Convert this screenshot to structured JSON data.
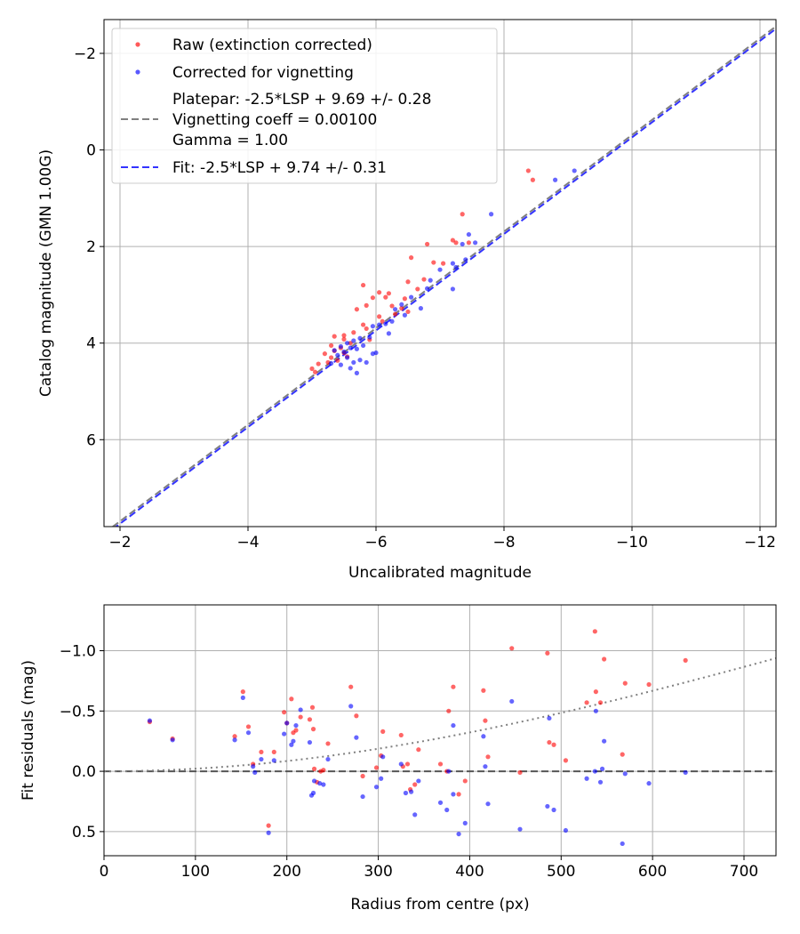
{
  "chart_data": [
    {
      "type": "scatter",
      "title": "",
      "xlabel": "Uncalibrated magnitude",
      "ylabel": "Catalog magnitude (GMN 1.00G)",
      "xlim": [
        -1.75,
        -12.25
      ],
      "ylim": [
        -2.7,
        7.8
      ],
      "y_inverted": true,
      "grid": true,
      "xticks": [
        -2,
        -4,
        -6,
        -8,
        -10,
        -12
      ],
      "yticks": [
        -2,
        0,
        2,
        4,
        6
      ],
      "xtick_labels": [
        "−2",
        "−4",
        "−6",
        "−8",
        "−10",
        "−12"
      ],
      "ytick_labels": [
        "−2",
        "0",
        "2",
        "4",
        "6"
      ],
      "legend": {
        "position": "top-left",
        "entries": [
          {
            "label": "Raw (extinction corrected)",
            "marker": "dot",
            "color": "#ff0000"
          },
          {
            "label": "Corrected for vignetting",
            "marker": "dot",
            "color": "#0000ff"
          },
          {
            "label_lines": [
              "Platepar: -2.5*LSP + 9.69 +/- 0.28",
              "Vignetting coeff = 0.00100",
              "Gamma = 1.00"
            ],
            "marker": "dashed-line",
            "color": "#808080"
          },
          {
            "label": "Fit: -2.5*LSP + 9.74 +/- 0.31",
            "marker": "dashed-line",
            "color": "#0000ff"
          }
        ]
      },
      "lines": [
        {
          "name": "Platepar",
          "x": [
            -1.75,
            -12.25
          ],
          "y": [
            7.94,
            -2.56
          ],
          "color": "#808080",
          "style": "dashed"
        },
        {
          "name": "Fit",
          "x": [
            -1.75,
            -12.25
          ],
          "y": [
            7.99,
            -2.51
          ],
          "color": "#0000ff",
          "style": "dashed"
        }
      ],
      "series": [
        {
          "name": "Raw (extinction corrected)",
          "color": "#ff0000",
          "points": [
            [
              -8.38,
              0.43
            ],
            [
              -8.45,
              0.62
            ],
            [
              -7.35,
              1.33
            ],
            [
              -7.2,
              1.87
            ],
            [
              -7.25,
              1.92
            ],
            [
              -7.45,
              1.92
            ],
            [
              -6.8,
              1.95
            ],
            [
              -6.55,
              2.23
            ],
            [
              -6.9,
              2.33
            ],
            [
              -7.05,
              2.35
            ],
            [
              -6.75,
              2.68
            ],
            [
              -6.5,
              2.73
            ],
            [
              -6.65,
              2.88
            ],
            [
              -5.8,
              2.8
            ],
            [
              -6.05,
              2.95
            ],
            [
              -6.15,
              3.05
            ],
            [
              -6.2,
              2.97
            ],
            [
              -5.95,
              3.06
            ],
            [
              -6.45,
              3.08
            ],
            [
              -5.85,
              3.22
            ],
            [
              -6.25,
              3.23
            ],
            [
              -6.4,
              3.28
            ],
            [
              -6.5,
              3.35
            ],
            [
              -5.7,
              3.3
            ],
            [
              -6.05,
              3.45
            ],
            [
              -6.3,
              3.4
            ],
            [
              -5.8,
              3.62
            ],
            [
              -6.1,
              3.55
            ],
            [
              -5.85,
              3.7
            ],
            [
              -5.65,
              3.78
            ],
            [
              -5.5,
              3.84
            ],
            [
              -5.35,
              3.86
            ],
            [
              -5.5,
              3.92
            ],
            [
              -5.9,
              3.93
            ],
            [
              -5.6,
              4.0
            ],
            [
              -5.3,
              4.05
            ],
            [
              -5.45,
              4.1
            ],
            [
              -5.35,
              4.16
            ],
            [
              -5.5,
              4.2
            ],
            [
              -5.2,
              4.22
            ],
            [
              -5.55,
              4.28
            ],
            [
              -5.3,
              4.3
            ],
            [
              -5.4,
              4.36
            ],
            [
              -5.25,
              4.4
            ],
            [
              -5.1,
              4.43
            ],
            [
              -5.0,
              4.53
            ],
            [
              -5.05,
              4.6
            ]
          ]
        },
        {
          "name": "Corrected for vignetting",
          "color": "#0000ff",
          "points": [
            [
              -9.1,
              0.43
            ],
            [
              -8.8,
              0.62
            ],
            [
              -7.8,
              1.33
            ],
            [
              -7.45,
              1.75
            ],
            [
              -7.55,
              1.92
            ],
            [
              -7.35,
              1.95
            ],
            [
              -7.4,
              2.27
            ],
            [
              -7.2,
              2.35
            ],
            [
              -7.25,
              2.43
            ],
            [
              -7.0,
              2.48
            ],
            [
              -6.85,
              2.7
            ],
            [
              -6.8,
              2.87
            ],
            [
              -7.2,
              2.88
            ],
            [
              -6.55,
              3.05
            ],
            [
              -6.4,
              3.2
            ],
            [
              -6.7,
              3.28
            ],
            [
              -6.3,
              3.3
            ],
            [
              -6.45,
              3.42
            ],
            [
              -6.25,
              3.55
            ],
            [
              -6.15,
              3.6
            ],
            [
              -6.05,
              3.62
            ],
            [
              -5.95,
              3.65
            ],
            [
              -6.2,
              3.8
            ],
            [
              -5.9,
              3.88
            ],
            [
              -5.75,
              3.9
            ],
            [
              -5.65,
              3.95
            ],
            [
              -5.55,
              4.0
            ],
            [
              -5.8,
              4.05
            ],
            [
              -5.45,
              4.07
            ],
            [
              -5.6,
              4.1
            ],
            [
              -5.7,
              4.12
            ],
            [
              -5.35,
              4.15
            ],
            [
              -5.5,
              4.18
            ],
            [
              -6.0,
              4.2
            ],
            [
              -5.95,
              4.22
            ],
            [
              -5.4,
              4.25
            ],
            [
              -5.55,
              4.3
            ],
            [
              -5.75,
              4.35
            ],
            [
              -5.65,
              4.4
            ],
            [
              -5.3,
              4.42
            ],
            [
              -5.45,
              4.45
            ],
            [
              -5.6,
              4.52
            ],
            [
              -5.7,
              4.62
            ],
            [
              -5.85,
              4.4
            ]
          ]
        }
      ]
    },
    {
      "type": "scatter",
      "title": "",
      "xlabel": "Radius from centre (px)",
      "ylabel": "Fit residuals (mag)",
      "xlim": [
        0,
        735
      ],
      "ylim": [
        -1.38,
        0.7
      ],
      "grid": true,
      "xticks": [
        0,
        100,
        200,
        300,
        400,
        500,
        600,
        700
      ],
      "yticks": [
        0.5,
        0.0,
        -0.5,
        -1.0
      ],
      "xtick_labels": [
        "0",
        "100",
        "200",
        "300",
        "400",
        "500",
        "600",
        "700"
      ],
      "ytick_labels": [
        "0.5",
        "0.0",
        "−0.5",
        "−1.0"
      ],
      "reference_line": {
        "y": 0.0,
        "color": "#555555",
        "style": "dashed"
      },
      "vignetting_curve": {
        "description": "-2.5*log10(cos^4(atan(vign_coeff*r)))",
        "vignetting_coeff": 0.001,
        "color": "#808080",
        "style": "dotted"
      },
      "series": [
        {
          "name": "Raw (extinction corrected)",
          "color": "#ff0000",
          "points": [
            [
              50,
              -0.41
            ],
            [
              75,
              -0.27
            ],
            [
              143,
              -0.29
            ],
            [
              152,
              -0.66
            ],
            [
              158,
              -0.37
            ],
            [
              163,
              -0.06
            ],
            [
              172,
              -0.16
            ],
            [
              180,
              0.45
            ],
            [
              186,
              -0.16
            ],
            [
              197,
              -0.49
            ],
            [
              200,
              -0.4
            ],
            [
              205,
              -0.6
            ],
            [
              207,
              -0.32
            ],
            [
              210,
              -0.34
            ],
            [
              215,
              -0.45
            ],
            [
              225,
              -0.43
            ],
            [
              228,
              -0.53
            ],
            [
              229,
              -0.35
            ],
            [
              230,
              -0.02
            ],
            [
              233,
              0.09
            ],
            [
              237,
              0.0
            ],
            [
              240,
              -0.01
            ],
            [
              245,
              -0.23
            ],
            [
              270,
              -0.7
            ],
            [
              276,
              -0.46
            ],
            [
              283,
              0.04
            ],
            [
              298,
              -0.03
            ],
            [
              303,
              -0.13
            ],
            [
              305,
              -0.33
            ],
            [
              325,
              -0.3
            ],
            [
              327,
              -0.04
            ],
            [
              332,
              -0.06
            ],
            [
              335,
              0.15
            ],
            [
              340,
              0.11
            ],
            [
              344,
              -0.18
            ],
            [
              368,
              -0.06
            ],
            [
              375,
              0.0
            ],
            [
              377,
              -0.5
            ],
            [
              382,
              -0.7
            ],
            [
              388,
              0.19
            ],
            [
              395,
              0.08
            ],
            [
              415,
              -0.67
            ],
            [
              417,
              -0.42
            ],
            [
              420,
              -0.12
            ],
            [
              446,
              -1.02
            ],
            [
              455,
              0.01
            ],
            [
              485,
              -0.98
            ],
            [
              487,
              -0.24
            ],
            [
              492,
              -0.22
            ],
            [
              505,
              -0.09
            ],
            [
              528,
              -0.57
            ],
            [
              537,
              -1.16
            ],
            [
              538,
              -0.66
            ],
            [
              543,
              -0.57
            ],
            [
              547,
              -0.93
            ],
            [
              567,
              -0.14
            ],
            [
              570,
              -0.73
            ],
            [
              596,
              -0.72
            ],
            [
              636,
              -0.92
            ]
          ]
        },
        {
          "name": "Corrected for vignetting",
          "color": "#0000ff",
          "points": [
            [
              50,
              -0.42
            ],
            [
              75,
              -0.26
            ],
            [
              143,
              -0.26
            ],
            [
              152,
              -0.61
            ],
            [
              158,
              -0.32
            ],
            [
              163,
              -0.04
            ],
            [
              165,
              0.01
            ],
            [
              172,
              -0.1
            ],
            [
              180,
              0.51
            ],
            [
              186,
              -0.09
            ],
            [
              197,
              -0.31
            ],
            [
              200,
              -0.4
            ],
            [
              205,
              -0.22
            ],
            [
              207,
              -0.25
            ],
            [
              210,
              -0.38
            ],
            [
              215,
              -0.51
            ],
            [
              225,
              -0.24
            ],
            [
              227,
              0.2
            ],
            [
              229,
              0.18
            ],
            [
              230,
              0.08
            ],
            [
              236,
              0.1
            ],
            [
              240,
              0.11
            ],
            [
              245,
              -0.1
            ],
            [
              270,
              -0.54
            ],
            [
              276,
              -0.28
            ],
            [
              283,
              0.21
            ],
            [
              298,
              0.13
            ],
            [
              303,
              0.06
            ],
            [
              305,
              -0.12
            ],
            [
              325,
              -0.06
            ],
            [
              330,
              0.18
            ],
            [
              336,
              0.17
            ],
            [
              340,
              0.36
            ],
            [
              344,
              0.08
            ],
            [
              368,
              0.26
            ],
            [
              375,
              0.32
            ],
            [
              377,
              0.0
            ],
            [
              382,
              0.19
            ],
            [
              382,
              -0.38
            ],
            [
              388,
              0.52
            ],
            [
              395,
              0.43
            ],
            [
              415,
              -0.29
            ],
            [
              417,
              -0.04
            ],
            [
              420,
              0.27
            ],
            [
              446,
              -0.58
            ],
            [
              455,
              0.48
            ],
            [
              485,
              0.29
            ],
            [
              487,
              -0.44
            ],
            [
              492,
              0.32
            ],
            [
              505,
              0.49
            ],
            [
              528,
              0.06
            ],
            [
              537,
              0.0
            ],
            [
              538,
              -0.5
            ],
            [
              543,
              0.09
            ],
            [
              545,
              -0.02
            ],
            [
              547,
              -0.25
            ],
            [
              567,
              0.6
            ],
            [
              570,
              0.02
            ],
            [
              596,
              0.1
            ],
            [
              636,
              0.01
            ]
          ]
        }
      ]
    }
  ]
}
